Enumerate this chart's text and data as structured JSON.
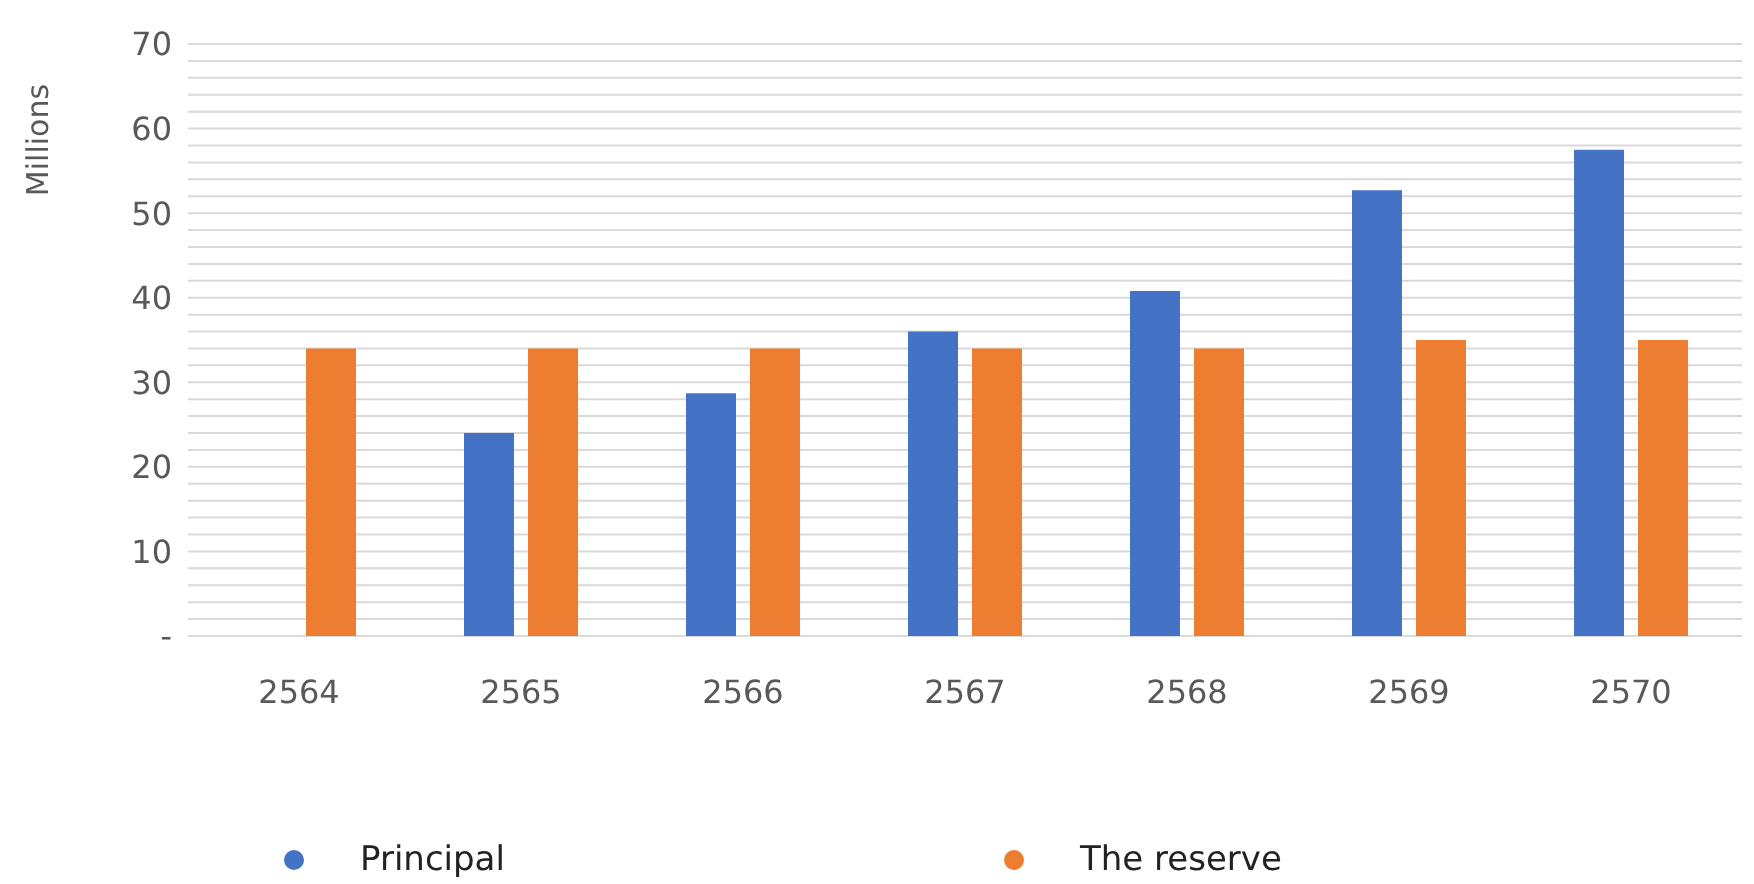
{
  "chart_data": {
    "type": "bar",
    "ylabel": "Millions",
    "categories": [
      "2564",
      "2565",
      "2566",
      "2567",
      "2568",
      "2569",
      "2570"
    ],
    "series": [
      {
        "name": "Principal",
        "color": "#4472c4",
        "values": [
          null,
          24,
          28.7,
          36,
          40.8,
          52.7,
          57.5
        ]
      },
      {
        "name": "The reserve",
        "color": "#ed7d31",
        "values": [
          34,
          34,
          34,
          34,
          34,
          35,
          35
        ]
      }
    ],
    "ylim": [
      0,
      70
    ],
    "yticks": [
      {
        "value": 0,
        "label": "-"
      },
      {
        "value": 2,
        "label": null
      },
      {
        "value": 4,
        "label": null
      },
      {
        "value": 6,
        "label": null
      },
      {
        "value": 8,
        "label": null
      },
      10,
      {
        "value": 12,
        "label": null
      },
      {
        "value": 14,
        "label": null
      },
      {
        "value": 16,
        "label": null
      },
      {
        "value": 18,
        "label": null
      },
      20,
      {
        "value": 22,
        "label": null
      },
      {
        "value": 24,
        "label": null
      },
      {
        "value": 26,
        "label": null
      },
      {
        "value": 28,
        "label": null
      },
      30,
      {
        "value": 32,
        "label": null
      },
      {
        "value": 34,
        "label": null
      },
      {
        "value": 36,
        "label": null
      },
      {
        "value": 38,
        "label": null
      },
      40,
      {
        "value": 42,
        "label": null
      },
      {
        "value": 44,
        "label": null
      },
      {
        "value": 46,
        "label": null
      },
      {
        "value": 48,
        "label": null
      },
      50,
      {
        "value": 52,
        "label": null
      },
      {
        "value": 54,
        "label": null
      },
      {
        "value": 56,
        "label": null
      },
      {
        "value": 58,
        "label": null
      },
      60,
      {
        "value": 62,
        "label": null
      },
      {
        "value": 64,
        "label": null
      },
      {
        "value": 66,
        "label": null
      },
      {
        "value": 68,
        "label": null
      },
      70
    ],
    "grid": "y",
    "legend": "bottom"
  }
}
